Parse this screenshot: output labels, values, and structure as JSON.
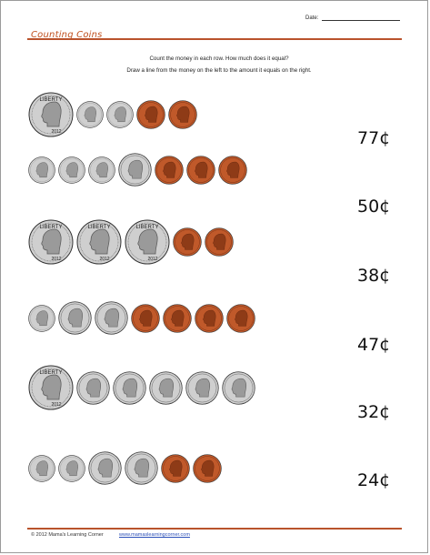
{
  "header": {
    "date_label": "Date:",
    "title": "Counting Coins"
  },
  "instructions": {
    "line1": "Count the money in each row.  How much does it equal?",
    "line2": "Draw a line from the money on the left to the amount it equals on the right."
  },
  "coin_labels": {
    "quarter_liberty": "LIBERTY",
    "year": "2012"
  },
  "rows": [
    {
      "coins": [
        "quarter",
        "dime",
        "dime",
        "penny",
        "penny"
      ],
      "amount": "77¢"
    },
    {
      "coins": [
        "dime",
        "dime",
        "dime",
        "nickel",
        "penny",
        "penny",
        "penny"
      ],
      "amount": "50¢"
    },
    {
      "coins": [
        "quarter",
        "quarter",
        "quarter",
        "penny",
        "penny"
      ],
      "amount": "38¢"
    },
    {
      "coins": [
        "dime",
        "nickel",
        "nickel",
        "penny",
        "penny",
        "penny",
        "penny"
      ],
      "amount": "47¢"
    },
    {
      "coins": [
        "quarter",
        "nickel",
        "nickel",
        "nickel",
        "nickel",
        "nickel"
      ],
      "amount": "32¢"
    },
    {
      "coins": [
        "dime",
        "dime",
        "nickel",
        "nickel",
        "penny",
        "penny"
      ],
      "amount": "24¢"
    }
  ],
  "colors": {
    "accent": "#b9532c",
    "silver": "#cfcfcf",
    "copper": "#c0592a"
  },
  "footer": {
    "copyright": "© 2012 Mama's Learning Corner",
    "url": "www.mamaslearningcorner.com"
  }
}
